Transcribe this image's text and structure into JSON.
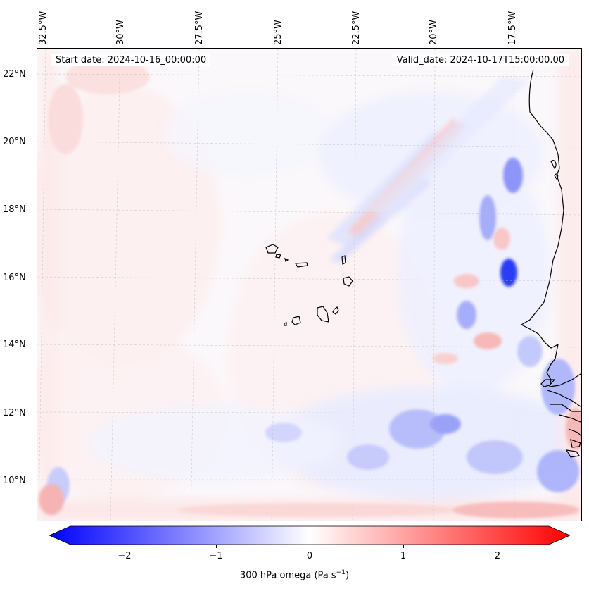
{
  "map": {
    "longitude_labels": [
      "32.5°W",
      "30°W",
      "27.5°W",
      "25°W",
      "22.5°W",
      "20°W",
      "17.5°W"
    ],
    "latitude_labels": [
      "22°N",
      "20°N",
      "18°N",
      "16°N",
      "14°N",
      "12°N",
      "10°N"
    ],
    "start_date": "Start date: 2024-10-16_00:00:00",
    "valid_date": "Valid_date: 2024-10-17T15:00:00.00",
    "field": "300 hPa omega",
    "colormap": "bwr",
    "min_color": "#0000ff",
    "mid_color": "#ffffff",
    "max_color": "#ff0000",
    "coastline_color": "#000000"
  },
  "colorbar": {
    "ticks": [
      "−2",
      "−1",
      "0",
      "1",
      "2"
    ],
    "tick_values": [
      -2,
      -1,
      0,
      1,
      2
    ],
    "range": [
      -2.7,
      2.7
    ],
    "label_text": "300 hPa omega (Pa s",
    "label_exp": "−1",
    "label_close": ")",
    "extend": "both"
  }
}
